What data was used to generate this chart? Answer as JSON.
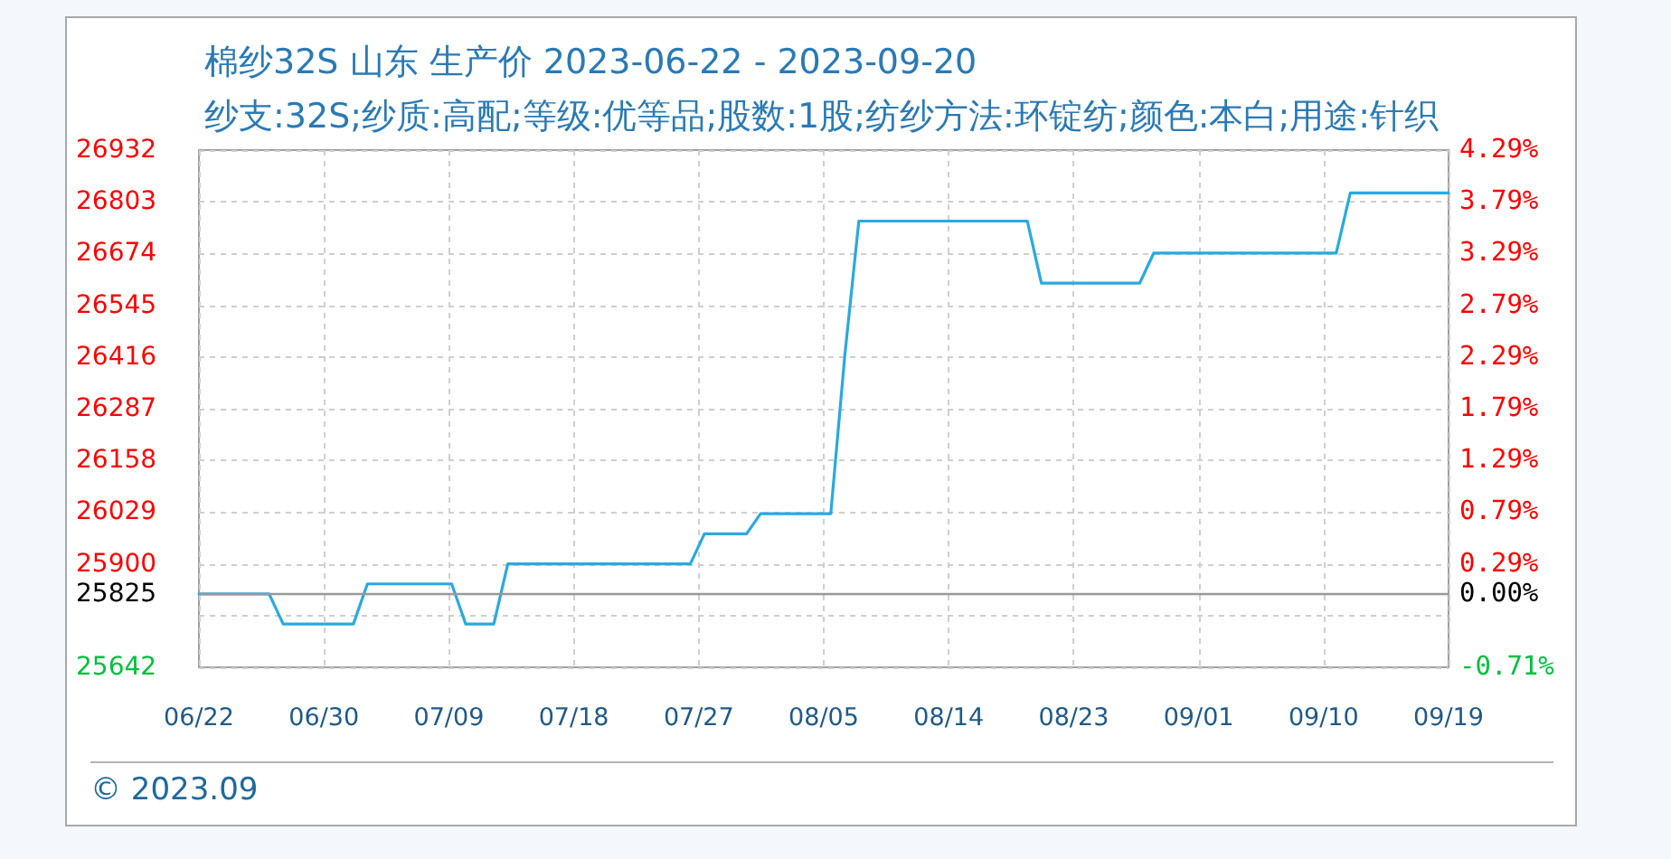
{
  "chart_data": {
    "type": "line",
    "title": "棉纱32S 山东 生产价 2023-06-22 - 2023-09-20",
    "subtitle": "纱支:32S;纱质:高配;等级:优等品;股数:1股;纺纱方法:环锭纺;颜色:本白;用途:针织",
    "x": [
      "2023-06-22",
      "2023-06-23",
      "2023-06-24",
      "2023-06-25",
      "2023-06-26",
      "2023-06-27",
      "2023-06-28",
      "2023-06-29",
      "2023-06-30",
      "2023-07-01",
      "2023-07-02",
      "2023-07-03",
      "2023-07-04",
      "2023-07-05",
      "2023-07-06",
      "2023-07-07",
      "2023-07-08",
      "2023-07-09",
      "2023-07-10",
      "2023-07-11",
      "2023-07-12",
      "2023-07-13",
      "2023-07-14",
      "2023-07-15",
      "2023-07-16",
      "2023-07-17",
      "2023-07-18",
      "2023-07-19",
      "2023-07-20",
      "2023-07-21",
      "2023-07-22",
      "2023-07-23",
      "2023-07-24",
      "2023-07-25",
      "2023-07-26",
      "2023-07-27",
      "2023-07-28",
      "2023-07-29",
      "2023-07-30",
      "2023-07-31",
      "2023-08-01",
      "2023-08-02",
      "2023-08-03",
      "2023-08-04",
      "2023-08-05",
      "2023-08-06",
      "2023-08-07",
      "2023-08-08",
      "2023-08-09",
      "2023-08-10",
      "2023-08-11",
      "2023-08-12",
      "2023-08-13",
      "2023-08-14",
      "2023-08-15",
      "2023-08-16",
      "2023-08-17",
      "2023-08-18",
      "2023-08-19",
      "2023-08-20",
      "2023-08-21",
      "2023-08-22",
      "2023-08-23",
      "2023-08-24",
      "2023-08-25",
      "2023-08-26",
      "2023-08-27",
      "2023-08-28",
      "2023-08-29",
      "2023-08-30",
      "2023-08-31",
      "2023-09-01",
      "2023-09-02",
      "2023-09-03",
      "2023-09-04",
      "2023-09-05",
      "2023-09-06",
      "2023-09-07",
      "2023-09-08",
      "2023-09-09",
      "2023-09-10",
      "2023-09-11",
      "2023-09-12",
      "2023-09-13",
      "2023-09-14",
      "2023-09-15",
      "2023-09-16",
      "2023-09-17",
      "2023-09-18",
      "2023-09-19"
    ],
    "series": [
      {
        "color": "#29a9e0",
        "values": [
          25825,
          25825,
          25825,
          25825,
          25825,
          25825,
          25750,
          25750,
          25750,
          25750,
          25750,
          25750,
          25850,
          25850,
          25850,
          25850,
          25850,
          25850,
          25850,
          25750,
          25750,
          25750,
          25900,
          25900,
          25900,
          25900,
          25900,
          25900,
          25900,
          25900,
          25900,
          25900,
          25900,
          25900,
          25900,
          25900,
          25975,
          25975,
          25975,
          25975,
          26025,
          26025,
          26025,
          26025,
          26025,
          26025,
          26420,
          26755,
          26755,
          26755,
          26755,
          26755,
          26755,
          26755,
          26755,
          26755,
          26755,
          26755,
          26755,
          26755,
          26600,
          26600,
          26600,
          26600,
          26600,
          26600,
          26600,
          26600,
          26675,
          26675,
          26675,
          26675,
          26675,
          26675,
          26675,
          26675,
          26675,
          26675,
          26675,
          26675,
          26675,
          26675,
          26825,
          26825,
          26825,
          26825,
          26825,
          26825,
          26825,
          26825
        ]
      }
    ],
    "xlim": [
      "2023-06-22",
      "2023-09-19"
    ],
    "xticks": [
      {
        "value": "2023-06-22",
        "label": "06/22"
      },
      {
        "value": "2023-06-30T21:36",
        "label": "06/30"
      },
      {
        "value": "2023-07-09T19:12",
        "label": "07/09"
      },
      {
        "value": "2023-07-18T16:48",
        "label": "07/18"
      },
      {
        "value": "2023-07-27T14:24",
        "label": "07/27"
      },
      {
        "value": "2023-08-05T12:00",
        "label": "08/05"
      },
      {
        "value": "2023-08-14T09:36",
        "label": "08/14"
      },
      {
        "value": "2023-08-23T07:12",
        "label": "08/23"
      },
      {
        "value": "2023-09-01T04:48",
        "label": "09/01"
      },
      {
        "value": "2023-09-10T02:24",
        "label": "09/10"
      },
      {
        "value": "2023-09-19",
        "label": "09/19"
      }
    ],
    "ylim": [
      25642,
      26932
    ],
    "yticks": [
      25642,
      {
        "value": 25771,
        "label": null
      },
      25825,
      25900,
      26029,
      26158,
      26287,
      26416,
      26545,
      26674,
      26803,
      26932
    ],
    "y2lim": [
      -0.71,
      4.29
    ],
    "y2ticks": [
      {
        "value": -0.71,
        "label": "-0.71%"
      },
      {
        "value": 0,
        "label": "0.00%"
      },
      {
        "value": 0.29,
        "label": "0.29%"
      },
      {
        "value": 0.79,
        "label": "0.79%"
      },
      {
        "value": 1.29,
        "label": "1.29%"
      },
      {
        "value": 1.79,
        "label": "1.79%"
      },
      {
        "value": 2.29,
        "label": "2.29%"
      },
      {
        "value": 2.79,
        "label": "2.79%"
      },
      {
        "value": 3.29,
        "label": "3.29%"
      },
      {
        "value": 3.79,
        "label": "3.79%"
      },
      {
        "value": 4.29,
        "label": "4.29%"
      }
    ],
    "ref_lines": [
      {
        "axis": "y",
        "value": 25825,
        "color": "#999999"
      }
    ],
    "grid": true,
    "marker": "none",
    "line_style": "solid",
    "annotations": [
      "© 2023.09"
    ]
  }
}
